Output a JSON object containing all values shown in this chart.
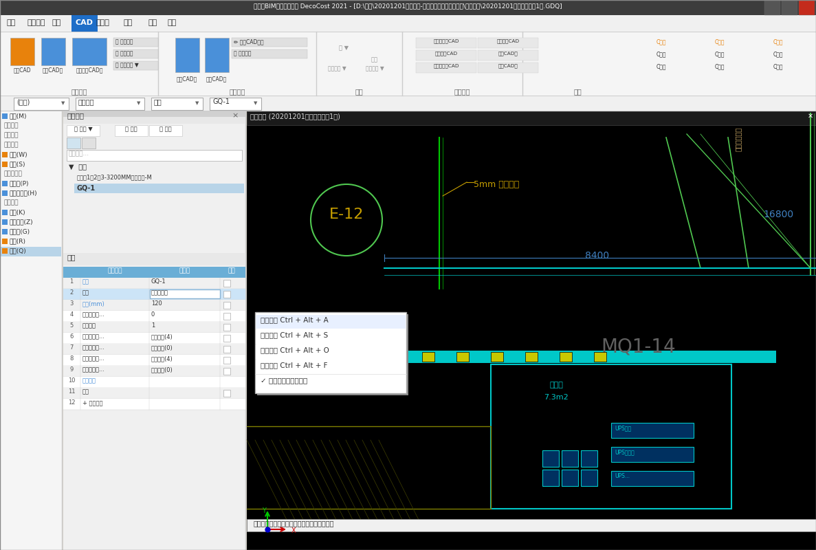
{
  "title_bar": "广联达BIM装饰计量软件 DecoCost 2021 - [D:\\杨艺\\20201201招行支行-丰台、慧忠北里、来广营\\成果文件\\20201201招行丰台支行1层.GDQ]",
  "menu_items": [
    "开始",
    "工程设置",
    "绘制",
    "CAD",
    "工程量",
    "视图",
    "工具",
    "协作"
  ],
  "cad_tab_active": "CAD",
  "toolbar_groups": [
    "图纸管理",
    "图纸编辑",
    "绘图",
    "图层管理",
    "修改"
  ],
  "left_panel_bg": "#f0f0f0",
  "right_panel_bg": "#000000",
  "context_menu_bg": "#ffffff",
  "context_menu_items": [
    "屏幕截图 Ctrl + Alt + A",
    "屏幕录制 Ctrl + Alt + S",
    "屏幕识图 Ctrl + Alt + O",
    "屏幕翻译 Ctrl + Alt + F",
    "✓ 截图时隐藏当前窗口"
  ],
  "property_table_headers": [
    "",
    "属性名称",
    "属性值",
    "附加"
  ],
  "property_rows": [
    [
      "1",
      "名称",
      "GQ-1",
      ""
    ],
    [
      "2",
      "类别",
      "板材式隔墙",
      ""
    ],
    [
      "3",
      "厚度(mm)",
      "120",
      ""
    ],
    [
      "4",
      "轴线距左墙...",
      "0",
      ""
    ],
    [
      "5",
      "调整系数",
      "1",
      ""
    ],
    [
      "6",
      "起点顶标高...",
      "层顶标高(4)",
      ""
    ],
    [
      "7",
      "起点底标高...",
      "层底标高(0)",
      ""
    ],
    [
      "8",
      "终点顶标高...",
      "层顶标高(4)",
      ""
    ],
    [
      "9",
      "终点底标高...",
      "层底标高(0)",
      ""
    ],
    [
      "10",
      "项目特征",
      "",
      ""
    ],
    [
      "11",
      "备注",
      "",
      ""
    ],
    [
      "12",
      "+ 显示样式",
      "",
      ""
    ]
  ],
  "component_list_items": [
    "隔墙",
    "理财室1、2、3-3200MM磨砂玻璃-M",
    "GQ-1"
  ],
  "left_nav_items": [
    "房间(M)",
    "装饰工程",
    "天棚工程",
    "墙面(W)",
    "踢脚(S)",
    "楼地面工程",
    "窗帘盒(P)",
    "门窗洞装修(H)",
    "零星装修",
    "灯带(K)",
    "装饰线条(Z)",
    "钢构件(G)",
    "栏杆(R)",
    "隔墙(Q)"
  ],
  "cad_viewport_text": {
    "title": "默认视口 (20201201招行丰台支行1层)",
    "e12_circle": "E-12",
    "dim1": "5mm 钢板隔墙",
    "dim2": "8400",
    "dim3": "16800",
    "mq": "MQ1-14",
    "room": "经理室",
    "area": "7.3m2",
    "status": "按鼠标左键指定第一个角点，或拾取构件图元",
    "curtain_wall": "幕墙通高幕墙"
  },
  "combo_values": [
    "(隔墙)",
    "零星装修",
    "隔墙",
    "GQ-1"
  ],
  "bg_title": "#f0f0f0",
  "bg_main": "#e8e8e8",
  "color_orange": "#e8820c",
  "color_blue": "#1e6ec8",
  "color_cad_text": "#c8a000",
  "color_cad_cyan": "#00c8c8",
  "color_cad_green": "#00c800",
  "color_cad_blue": "#6060ff",
  "color_cad_yellow": "#c8c800",
  "color_cad_dim": "#4080c0"
}
